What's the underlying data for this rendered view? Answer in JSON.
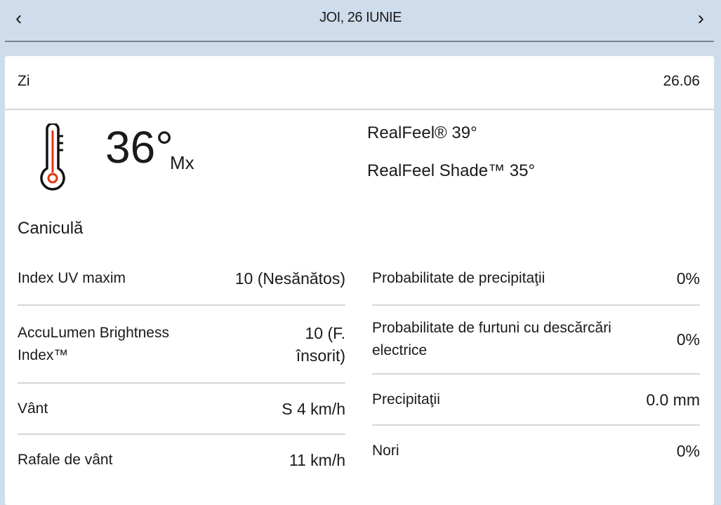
{
  "header": {
    "title": "JOI, 26 IUNIE",
    "prev": "‹",
    "next": "›"
  },
  "day": {
    "label": "Zi",
    "date": "26.06"
  },
  "temperature": {
    "value": "36°",
    "unit": "Mx",
    "icon": "thermometer-icon",
    "icon_color": "#e8320f"
  },
  "realfeel": {
    "realfeel": "RealFeel® 39°",
    "shade": "RealFeel Shade™ 35°"
  },
  "condition": "Caniculă",
  "left_rows": [
    {
      "label": "Index UV maxim",
      "value": "10 (Nesănătos)"
    },
    {
      "label": "AccuLumen Brightness Index™",
      "value": "10 (F. însorit)"
    },
    {
      "label": "Vânt",
      "value": "S 4 km/h"
    },
    {
      "label": "Rafale de vânt",
      "value": "11 km/h"
    }
  ],
  "right_rows": [
    {
      "label": "Probabilitate de precipitaţii",
      "value": "0%"
    },
    {
      "label": "Probabilitate de furtuni cu descărcări electrice",
      "value": "0%"
    },
    {
      "label": "Precipitaţii",
      "value": "0.0 mm"
    },
    {
      "label": "Nori",
      "value": "0%"
    }
  ]
}
